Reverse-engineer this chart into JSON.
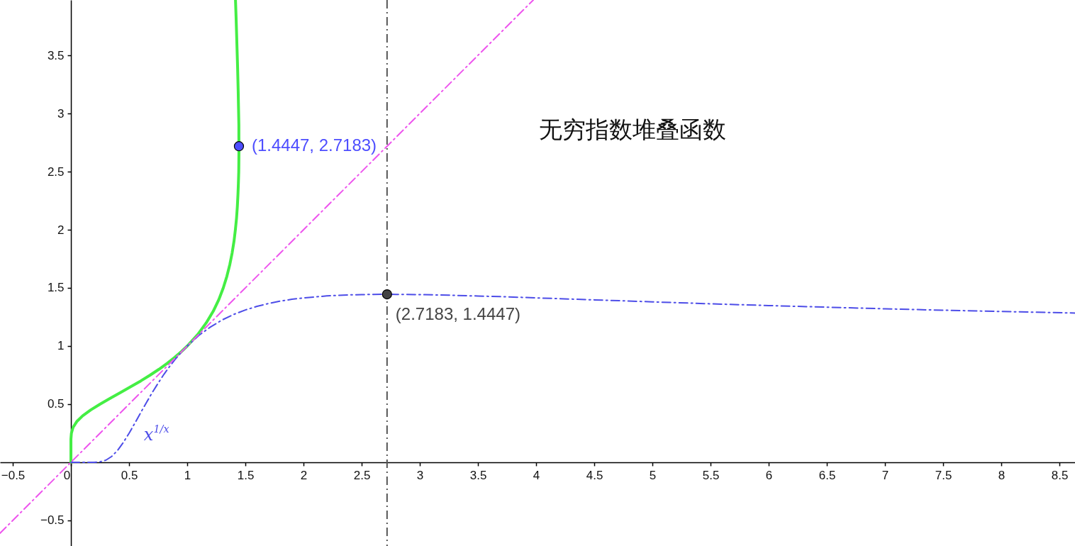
{
  "chart_data": {
    "type": "line",
    "title": "无穷指数堆叠函数",
    "xlim": [
      -0.61,
      8.634
    ],
    "ylim": [
      -0.72,
      3.976
    ],
    "xticks": [
      -0.5,
      0,
      0.5,
      1,
      1.5,
      2,
      2.5,
      3,
      3.5,
      4,
      4.5,
      5,
      5.5,
      6,
      6.5,
      7,
      7.5,
      8,
      8.5
    ],
    "yticks": [
      -0.5,
      0.5,
      1,
      1.5,
      2,
      2.5,
      3,
      3.5
    ],
    "series": [
      {
        "color": "#44ee44",
        "line_style": "solid",
        "x": [
          0,
          0,
          0,
          0.004,
          0.018,
          0.05,
          0.101,
          0.17,
          0.25,
          0.337,
          0.427,
          0.515,
          0.601,
          0.681,
          0.757,
          0.826,
          0.89,
          0.947,
          1,
          1.091,
          1.164,
          1.224,
          1.272,
          1.31,
          1.341,
          1.366,
          1.386,
          1.402,
          1.414,
          1.424,
          1.431,
          1.436,
          1.44,
          1.443,
          1.444,
          1.445,
          1.444,
          1.444,
          1.442,
          1.438,
          1.433,
          1.427,
          1.421,
          1.415
        ],
        "values": [
          0,
          0.1,
          0.2,
          0.25,
          0.3,
          0.35,
          0.4,
          0.45,
          0.5,
          0.55,
          0.6,
          0.65,
          0.7,
          0.75,
          0.8,
          0.85,
          0.9,
          0.95,
          1,
          1.1,
          1.2,
          1.3,
          1.4,
          1.5,
          1.6,
          1.7,
          1.8,
          1.9,
          2,
          2.1,
          2.2,
          2.3,
          2.4,
          2.5,
          2.6,
          2.718,
          2.8,
          2.9,
          3,
          3.2,
          3.4,
          3.6,
          3.8,
          3.976
        ]
      },
      {
        "name": "x$^{1/x}$",
        "color": "#4d4de8",
        "line_style": "dashed",
        "x": [
          0,
          0.1,
          0.2,
          0.25,
          0.3,
          0.35,
          0.4,
          0.45,
          0.5,
          0.55,
          0.6,
          0.65,
          0.7,
          0.75,
          0.8,
          0.85,
          0.9,
          0.95,
          1,
          1.1,
          1.2,
          1.3,
          1.4,
          1.5,
          1.6,
          1.7,
          1.8,
          1.9,
          2,
          2.2,
          2.4,
          2.6,
          2.718,
          2.8,
          3,
          3.25,
          3.5,
          3.75,
          4,
          4.5,
          5,
          5.5,
          6,
          6.5,
          7,
          7.5,
          8,
          8.634
        ],
        "values": [
          0,
          0,
          0,
          0.004,
          0.018,
          0.05,
          0.101,
          0.17,
          0.25,
          0.337,
          0.427,
          0.515,
          0.601,
          0.681,
          0.757,
          0.826,
          0.89,
          0.947,
          1,
          1.091,
          1.164,
          1.224,
          1.272,
          1.31,
          1.341,
          1.366,
          1.386,
          1.402,
          1.414,
          1.431,
          1.44,
          1.444,
          1.445,
          1.444,
          1.442,
          1.437,
          1.43,
          1.423,
          1.414,
          1.397,
          1.38,
          1.363,
          1.348,
          1.334,
          1.32,
          1.308,
          1.297,
          1.284
        ]
      },
      {
        "color": "#ee55ee",
        "line_style": "dashed",
        "x": [
          -0.61,
          3.976
        ],
        "values": [
          -0.61,
          3.976
        ]
      },
      {
        "type": "scatter",
        "marker": "circle",
        "color": "#4d4dff",
        "x": [
          1.4447
        ],
        "values": [
          2.7183
        ],
        "value_labels": [
          "(1.4447, 2.7183)"
        ]
      },
      {
        "type": "scatter",
        "marker": "circle",
        "color": "#444444",
        "x": [
          2.7183
        ],
        "values": [
          1.4447
        ],
        "value_labels": [
          "(2.7183, 1.4447)"
        ]
      }
    ],
    "ref_lines": [
      {
        "axis": "x",
        "value": 2.7183,
        "color": "#555555",
        "line_style": "dashed"
      }
    ]
  }
}
